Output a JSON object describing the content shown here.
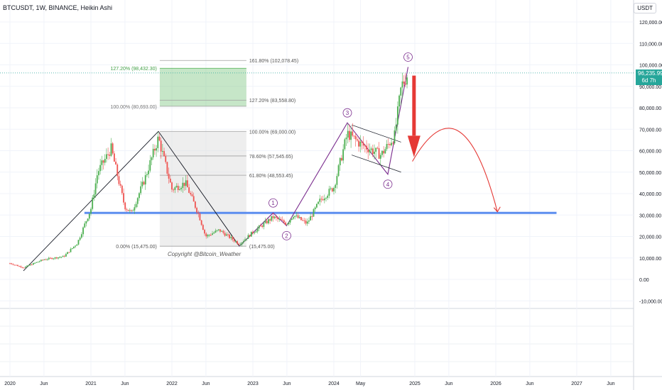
{
  "header": {
    "symbol_title": "BTCUSDT, 1W, BINANCE, Heikin Ashi",
    "currency": "USDT"
  },
  "price_tag": {
    "value": "96,235.99",
    "countdown": "6d 7h",
    "color": "#26a69a"
  },
  "watermark": "Copyright @Bitcoin_Weather",
  "colors": {
    "up": "#26a69a",
    "up_bright": "#4caf50",
    "down": "#ef5350",
    "fib_green": "#81c784",
    "support": "#5b8def",
    "wave": "#7b2d8e",
    "arrow": "#e53935"
  },
  "chart_data": {
    "type": "candlestick",
    "x_axis_labels": [
      "2020",
      "Jun",
      "2021",
      "Jun",
      "2022",
      "Jun",
      "2023",
      "Jun",
      "2024",
      "May",
      "2025",
      "Jun",
      "2026",
      "Jun",
      "2027",
      "Jun"
    ],
    "y_axis_labels": [
      "120,000.00",
      "110,000.00",
      "100,000.00",
      "90,000.00",
      "80,000.00",
      "70,000.00",
      "60,000.00",
      "50,000.00",
      "40,000.00",
      "30,000.00",
      "20,000.00",
      "10,000.00",
      "0.00",
      "-10,000.00"
    ],
    "ylim": [
      -10000,
      124000
    ],
    "current_price": 96235.99,
    "support_level": 31000,
    "fib_retracement": {
      "levels": [
        {
          "label": "0.00% (15,475.00)",
          "price": 15475
        },
        {
          "label": "61.80% (48,553.45)",
          "price": 48553.45
        },
        {
          "label": "78.60% (57,545.65)",
          "price": 57545.65
        },
        {
          "label": "100.00% (69,000.00)",
          "price": 69000
        },
        {
          "label": "127.20% (83,558.80)",
          "price": 83558.8
        },
        {
          "label": "161.80% (102,078.45)",
          "price": 102078.45
        }
      ]
    },
    "fib_extension": {
      "levels": [
        {
          "label": "100.00% (80,693.00)",
          "price": 80693
        },
        {
          "label": "127.20% (98,432.30)",
          "price": 98432.3
        }
      ]
    },
    "wave_labels": [
      "1",
      "2",
      "3",
      "4",
      "5"
    ],
    "wave_path": [
      {
        "t": "2022-11",
        "p": 15475
      },
      {
        "t": "2023-04",
        "p": 31000
      },
      {
        "t": "2023-06",
        "p": 25000
      },
      {
        "t": "2024-03",
        "p": 73000
      },
      {
        "t": "2024-09",
        "p": 49000
      },
      {
        "t": "2024-12",
        "p": 99000
      }
    ],
    "trend_path": [
      {
        "t": "2020-03",
        "p": 4000
      },
      {
        "t": "2021-11",
        "p": 69000
      },
      {
        "t": "2022-11",
        "p": 15475
      }
    ],
    "price_path": [
      {
        "t": "2020-01",
        "p": 7500
      },
      {
        "t": "2020-03",
        "p": 5500
      },
      {
        "t": "2020-06",
        "p": 9300
      },
      {
        "t": "2020-09",
        "p": 10700
      },
      {
        "t": "2020-11",
        "p": 17000
      },
      {
        "t": "2021-01",
        "p": 33000
      },
      {
        "t": "2021-02",
        "p": 50000
      },
      {
        "t": "2021-04",
        "p": 61000
      },
      {
        "t": "2021-06",
        "p": 34000
      },
      {
        "t": "2021-07",
        "p": 31000
      },
      {
        "t": "2021-09",
        "p": 47000
      },
      {
        "t": "2021-11",
        "p": 66000
      },
      {
        "t": "2022-01",
        "p": 42000
      },
      {
        "t": "2022-03",
        "p": 45000
      },
      {
        "t": "2022-05",
        "p": 30000
      },
      {
        "t": "2022-06",
        "p": 20000
      },
      {
        "t": "2022-08",
        "p": 23000
      },
      {
        "t": "2022-11",
        "p": 16500
      },
      {
        "t": "2023-01",
        "p": 22000
      },
      {
        "t": "2023-04",
        "p": 29000
      },
      {
        "t": "2023-06",
        "p": 26000
      },
      {
        "t": "2023-07",
        "p": 30000
      },
      {
        "t": "2023-09",
        "p": 26000
      },
      {
        "t": "2023-11",
        "p": 37000
      },
      {
        "t": "2024-01",
        "p": 43000
      },
      {
        "t": "2024-03",
        "p": 68000
      },
      {
        "t": "2024-05",
        "p": 63000
      },
      {
        "t": "2024-08",
        "p": 58000
      },
      {
        "t": "2024-10",
        "p": 67000
      },
      {
        "t": "2024-11",
        "p": 90000
      },
      {
        "t": "2024-12",
        "p": 96236
      }
    ]
  }
}
